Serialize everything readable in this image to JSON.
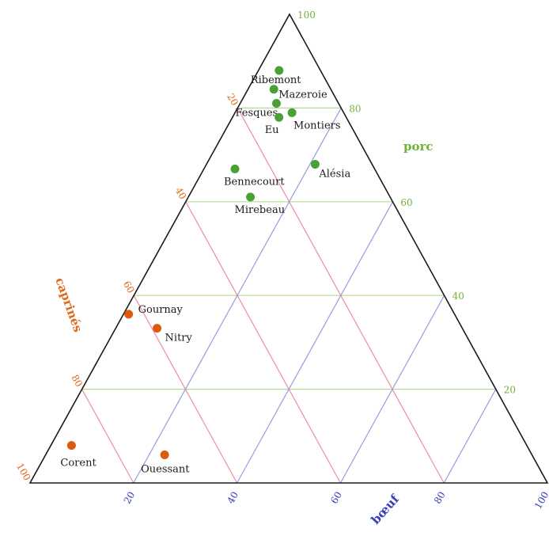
{
  "chart_data": {
    "type": "scatter",
    "subtype": "ternary",
    "axes": {
      "porc": {
        "label": "porc",
        "ticks": [
          "20",
          "40",
          "60",
          "80",
          "100"
        ],
        "color": "#6fb43a",
        "grid_color": "#b5dc92"
      },
      "caprines": {
        "label": "caprinés",
        "ticks": [
          "20",
          "40",
          "60",
          "80",
          "100"
        ],
        "color": "#e06a1f",
        "grid_color": "#f08aa6"
      },
      "boeuf": {
        "label": "bœuf",
        "ticks": [
          "20",
          "40",
          "60",
          "80",
          "100"
        ],
        "color": "#3a3db8",
        "grid_color": "#9a9ae0"
      }
    },
    "series": [
      {
        "name": "",
        "color": "#49a136",
        "points": [
          {
            "label": "Ribemont",
            "porc": 88,
            "caprines": 8,
            "boeuf": 4
          },
          {
            "label": "Mazeroie",
            "porc": 84,
            "caprines": 11,
            "boeuf": 5
          },
          {
            "label": "Fesques",
            "porc": 81,
            "caprines": 12,
            "boeuf": 7
          },
          {
            "label": "Montiers",
            "porc": 79,
            "caprines": 10,
            "boeuf": 11
          },
          {
            "label": "Eu",
            "porc": 78,
            "caprines": 13,
            "boeuf": 9
          },
          {
            "label": "Alésia",
            "porc": 68,
            "caprines": 11,
            "boeuf": 21
          },
          {
            "label": "Bennecourt",
            "porc": 67,
            "caprines": 27,
            "boeuf": 6
          },
          {
            "label": "Mirebeau",
            "porc": 61,
            "caprines": 27,
            "boeuf": 12
          }
        ]
      },
      {
        "name": "",
        "color": "#dd5a0e",
        "points": [
          {
            "label": "Gournay",
            "porc": 36,
            "caprines": 63,
            "boeuf": 1
          },
          {
            "label": "Nitry",
            "porc": 33,
            "caprines": 59,
            "boeuf": 8
          },
          {
            "label": "Corent",
            "porc": 8,
            "caprines": 88,
            "boeuf": 4
          },
          {
            "label": "Ouessant",
            "porc": 6,
            "caprines": 71,
            "boeuf": 23
          }
        ]
      }
    ],
    "grid": true
  }
}
